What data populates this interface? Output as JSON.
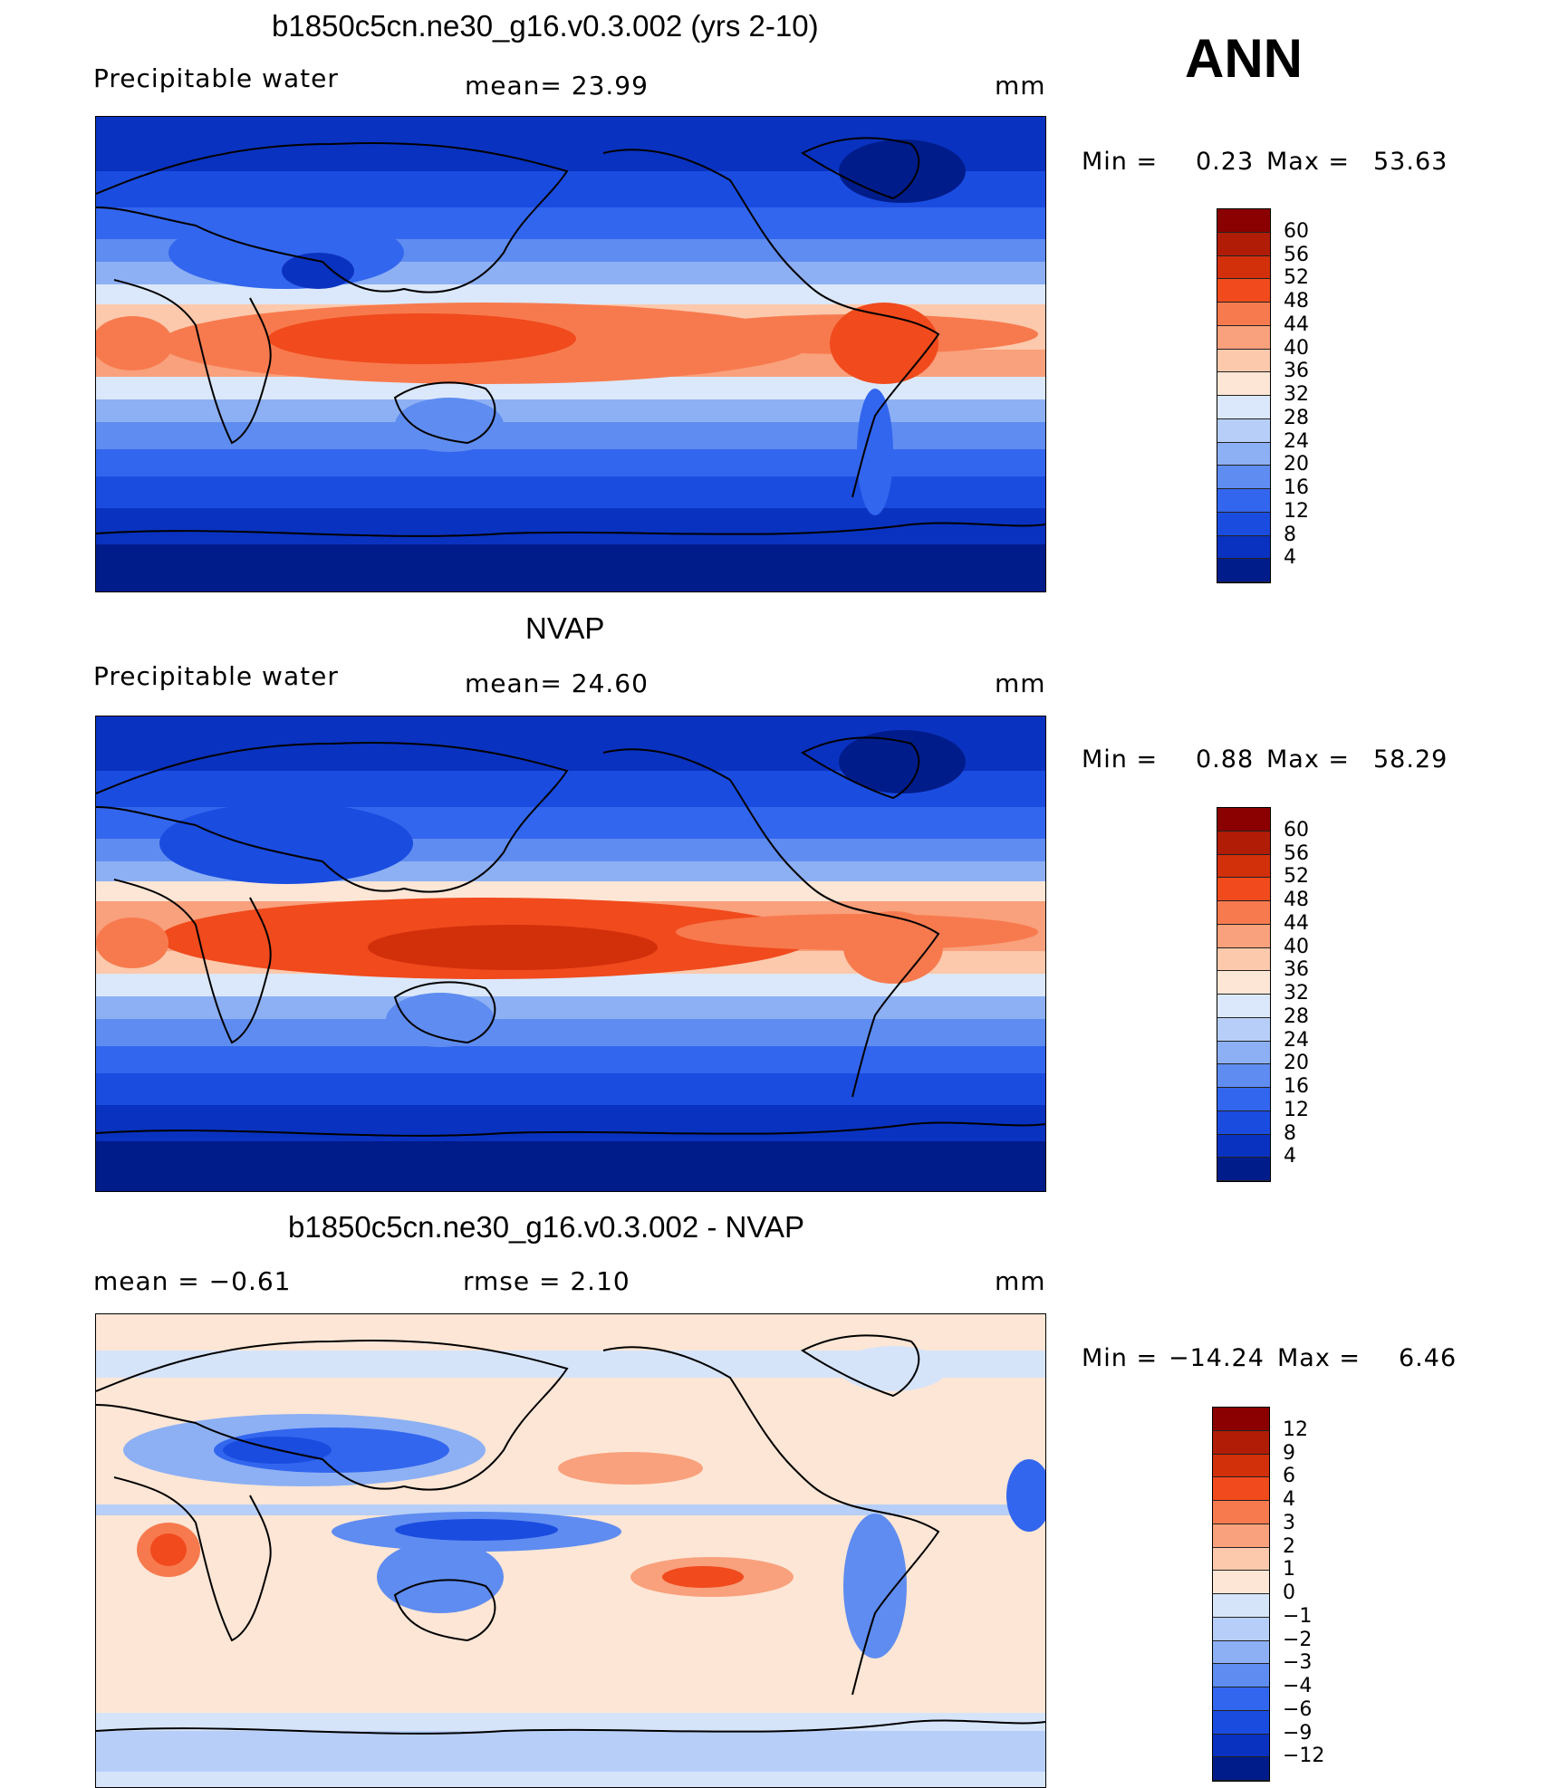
{
  "header": {
    "season": "ANN"
  },
  "panels": [
    {
      "id": "model",
      "title": "b1850c5cn.ne30_g16.v0.3.002 (yrs 2-10)",
      "left_label": "Precipitable  water",
      "center_label": "mean=   23.99",
      "units": "mm",
      "min_label": "Min  =",
      "min_value": "0.23",
      "max_label": "Max  =",
      "max_value": "53.63",
      "legend": {
        "levels": [
          "60",
          "56",
          "52",
          "48",
          "44",
          "40",
          "36",
          "32",
          "28",
          "24",
          "20",
          "16",
          "12",
          "8",
          "4"
        ],
        "colors": [
          "#8b0000",
          "#b01c06",
          "#d22f0b",
          "#f04a1d",
          "#f77a4e",
          "#f9a07c",
          "#fcc9ac",
          "#fde6d5",
          "#dbe8fb",
          "#b7cff8",
          "#8db0f4",
          "#5f8cf0",
          "#3366ee",
          "#1a4ce0",
          "#0a32c0",
          "#001c8a"
        ]
      }
    },
    {
      "id": "obs",
      "title": "NVAP",
      "left_label": "Precipitable  water",
      "center_label": "mean=   24.60",
      "units": "mm",
      "min_label": "Min  =",
      "min_value": "0.88",
      "max_label": "Max  =",
      "max_value": "58.29",
      "legend": {
        "levels": [
          "60",
          "56",
          "52",
          "48",
          "44",
          "40",
          "36",
          "32",
          "28",
          "24",
          "20",
          "16",
          "12",
          "8",
          "4"
        ],
        "colors": [
          "#8b0000",
          "#b01c06",
          "#d22f0b",
          "#f04a1d",
          "#f77a4e",
          "#f9a07c",
          "#fcc9ac",
          "#fde6d5",
          "#dbe8fb",
          "#b7cff8",
          "#8db0f4",
          "#5f8cf0",
          "#3366ee",
          "#1a4ce0",
          "#0a32c0",
          "#001c8a"
        ]
      }
    },
    {
      "id": "diff",
      "title": "b1850c5cn.ne30_g16.v0.3.002 - NVAP",
      "left_label": "mean  =    −0.61",
      "center_label": "rmse  =     2.10",
      "units": "mm",
      "min_label": "Min  =",
      "min_value": "−14.24",
      "max_label": "Max  =",
      "max_value": "6.46",
      "legend": {
        "levels": [
          "12",
          "9",
          "6",
          "4",
          "3",
          "2",
          "1",
          "0",
          "−1",
          "−2",
          "−3",
          "−4",
          "−6",
          "−9",
          "−12"
        ],
        "colors": [
          "#8b0000",
          "#b01c06",
          "#d22f0b",
          "#f04a1d",
          "#f77a4e",
          "#f9a07c",
          "#fcc9ac",
          "#fde6d5",
          "#d6e4fa",
          "#b7cff8",
          "#8db0f4",
          "#5f8cf0",
          "#3366ee",
          "#1a4ce0",
          "#0a32c0",
          "#001c8a"
        ]
      }
    }
  ]
}
